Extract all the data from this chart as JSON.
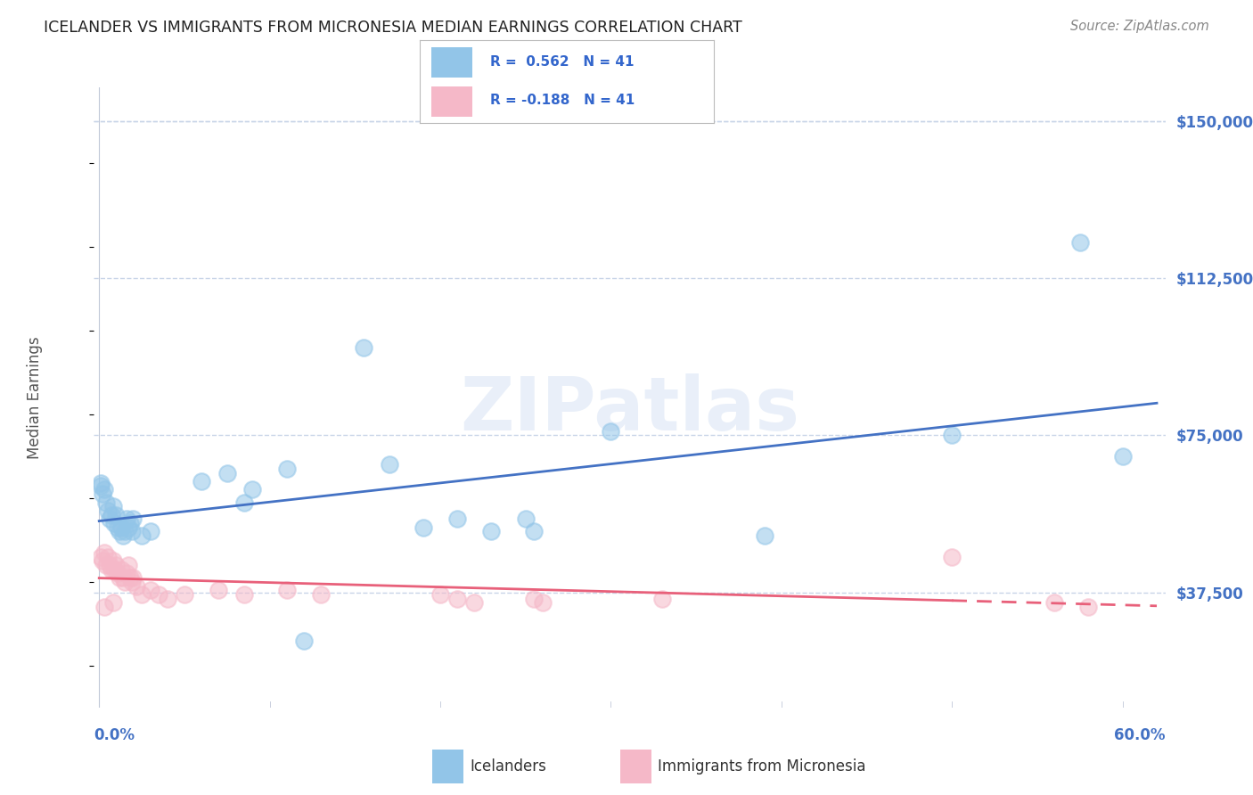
{
  "title": "ICELANDER VS IMMIGRANTS FROM MICRONESIA MEDIAN EARNINGS CORRELATION CHART",
  "source": "Source: ZipAtlas.com",
  "ylabel": "Median Earnings",
  "ytick_labels": [
    "$37,500",
    "$75,000",
    "$112,500",
    "$150,000"
  ],
  "ytick_values": [
    37500,
    75000,
    112500,
    150000
  ],
  "y_min": 10000,
  "y_max": 158000,
  "x_min": -0.003,
  "x_max": 0.625,
  "watermark": "ZIPatlas",
  "legend_blue_r": "R =  0.562",
  "legend_blue_n": "N = 41",
  "legend_pink_r": "R = -0.188",
  "legend_pink_n": "N = 41",
  "blue_color": "#92c5e8",
  "pink_color": "#f5b8c8",
  "blue_line_color": "#4472c4",
  "pink_line_color": "#e8607a",
  "legend_text_color": "#3366cc",
  "title_color": "#222222",
  "source_color": "#888888",
  "background_color": "#ffffff",
  "grid_color": "#c8d4e8",
  "right_label_color": "#4472c4",
  "bottom_label_color": "#4472c4",
  "blue_scatter": [
    [
      0.001,
      63000
    ],
    [
      0.002,
      61000
    ],
    [
      0.003,
      62000
    ],
    [
      0.004,
      59000
    ],
    [
      0.005,
      57000
    ],
    [
      0.006,
      55000
    ],
    [
      0.007,
      56000
    ],
    [
      0.008,
      58000
    ],
    [
      0.009,
      54000
    ],
    [
      0.01,
      56000
    ],
    [
      0.011,
      53000
    ],
    [
      0.012,
      52000
    ],
    [
      0.013,
      53000
    ],
    [
      0.014,
      51000
    ],
    [
      0.015,
      52000
    ],
    [
      0.016,
      55000
    ],
    [
      0.017,
      53000
    ],
    [
      0.018,
      54000
    ],
    [
      0.019,
      52000
    ],
    [
      0.02,
      55000
    ],
    [
      0.025,
      51000
    ],
    [
      0.03,
      52000
    ],
    [
      0.06,
      64000
    ],
    [
      0.075,
      66000
    ],
    [
      0.085,
      59000
    ],
    [
      0.09,
      62000
    ],
    [
      0.11,
      67000
    ],
    [
      0.155,
      96000
    ],
    [
      0.17,
      68000
    ],
    [
      0.19,
      53000
    ],
    [
      0.21,
      55000
    ],
    [
      0.23,
      52000
    ],
    [
      0.25,
      55000
    ],
    [
      0.255,
      52000
    ],
    [
      0.3,
      76000
    ],
    [
      0.39,
      51000
    ],
    [
      0.5,
      75000
    ],
    [
      0.575,
      121000
    ],
    [
      0.6,
      70000
    ],
    [
      0.12,
      26000
    ],
    [
      0.001,
      63500
    ]
  ],
  "pink_scatter": [
    [
      0.001,
      46000
    ],
    [
      0.002,
      45000
    ],
    [
      0.003,
      47000
    ],
    [
      0.004,
      44000
    ],
    [
      0.005,
      46000
    ],
    [
      0.006,
      44000
    ],
    [
      0.007,
      43000
    ],
    [
      0.008,
      45000
    ],
    [
      0.009,
      43000
    ],
    [
      0.01,
      44000
    ],
    [
      0.011,
      42000
    ],
    [
      0.012,
      41000
    ],
    [
      0.013,
      43000
    ],
    [
      0.014,
      41000
    ],
    [
      0.015,
      40000
    ],
    [
      0.016,
      42000
    ],
    [
      0.017,
      44000
    ],
    [
      0.018,
      41000
    ],
    [
      0.019,
      40000
    ],
    [
      0.02,
      41000
    ],
    [
      0.022,
      39000
    ],
    [
      0.025,
      37000
    ],
    [
      0.03,
      38000
    ],
    [
      0.035,
      37000
    ],
    [
      0.04,
      36000
    ],
    [
      0.05,
      37000
    ],
    [
      0.07,
      38000
    ],
    [
      0.085,
      37000
    ],
    [
      0.11,
      38000
    ],
    [
      0.13,
      37000
    ],
    [
      0.2,
      37000
    ],
    [
      0.21,
      36000
    ],
    [
      0.22,
      35000
    ],
    [
      0.255,
      36000
    ],
    [
      0.26,
      35000
    ],
    [
      0.33,
      36000
    ],
    [
      0.5,
      46000
    ],
    [
      0.56,
      35000
    ],
    [
      0.58,
      34000
    ],
    [
      0.008,
      35000
    ],
    [
      0.003,
      34000
    ]
  ]
}
